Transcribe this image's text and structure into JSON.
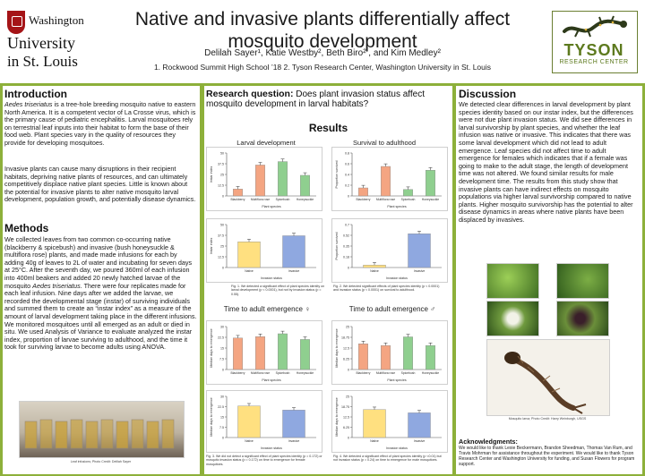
{
  "header": {
    "wu_logo_lines": [
      "Washington",
      "University",
      "in St. Louis"
    ],
    "title_line1": "Native and invasive plants differentially affect",
    "title_line2": "mosquito development",
    "authors": "Delilah Sayer¹, Katie Westby²,  Beth Biro² , and Kim Medley²",
    "affiliations": "1. Rockwood Summit High School ’18  2. Tyson Research Center, Washington University in St. Louis",
    "tyson_logo_name": "TYSON",
    "tyson_logo_sub": "RESEARCH CENTER"
  },
  "introduction": {
    "heading": "Introduction",
    "species": "Aedes triseriatus",
    "para1": " is a tree-hole breeding mosquito native to eastern North America. It is a competent vector of La Crosse virus, which is the primary cause of pediatric encephalitis. Larval mosquitoes rely on terrestrial leaf inputs into their habitat to form the base of their food web. Plant species vary in the quality of resources they provide for developing mosquitoes.",
    "para2": "Invasive plants can cause many disruptions in their recipient habitats, depriving native plants of resources, and can ultimately competitively displace native plant species. Little is known about the potential for invasive plants to alter native mosquito larval development, population growth, and potentially disease dynamics."
  },
  "methods": {
    "heading": "Methods",
    "text_a": "We collected leaves from two common co-occurring native (blackberry & spicebush)  and invasive (bush honeysuckle & multiflora rose) plants, and made made infusions for each by adding 40g of leaves to 2L of water and incubating for seven days at 25°C. After the seventh day, we poured 360ml of each infusion into 400ml beakers and added 20 newly hatched larvae of the mosquito ",
    "text_species": "Aedes triseriatus",
    "text_b": ". There were four replicates made for each leaf infusion. Nine days after we added the larvae, we recorded the developmental stage (instar) of surviving individuals and summed them to create an “instar index” as a measure of the amount of larval development taking place in the different infusions. We monitored mosquitoes until all emerged as an adult or died in situ. We used Analysis of Variance to evaluate analyzed the instar index, proportion of larvae surviving to adulthood, and the time it took for surviving larvae to become adults using ANOVA.",
    "photo_caption": "Leaf infusions; Photo Credit: Delilah Sayer"
  },
  "research_question": {
    "label": "Research question:",
    "text": " Does plant invasion status affect mosquito development in larval habitats?"
  },
  "results": {
    "heading": "Results",
    "larval_title": "Larval development",
    "survival_title": "Survival to adulthood",
    "female_title": "Time to adult emergence ♀",
    "male_title": "Time to adult emergence ♂",
    "cap_fig1": "Fig. 1. We detected a significant effect of plant species identity on larval development (p < 0.0001), but not by invasion status (p = 0.55).",
    "cap_fig2": "Fig. 2. We detected significant effects of plant species identity (p < 0.0001) and invasion status (p < 0.0001) on survival to adulthood.",
    "cap_fig3": "Fig. 3. We did not detect a significant effect of plant species identity (p = 0.172) or mosquito invasion status (p = 0.172) on time to emergence for female mosquitoes.",
    "cap_fig4": "Fig. 4. We detected a significant effect of plant species identity (p <0.01) but not invasion status (p = 0.24) on time to emergence for male mosquitoes."
  },
  "chart_data": [
    {
      "type": "bar",
      "title": "Larval development",
      "categories": [
        "Blackberry",
        "Multiflora rose",
        "Spicebush",
        "Honeysuckle"
      ],
      "values": [
        8,
        36,
        40,
        24
      ],
      "colors": [
        "#f4a582",
        "#f4a582",
        "#8fcf8f",
        "#8fcf8f"
      ],
      "ylim": [
        0,
        50
      ],
      "ylabel": "Instar index",
      "xlabel": "Plant species"
    },
    {
      "type": "bar",
      "title": "Survival to adulthood",
      "categories": [
        "Blackberry",
        "Multiflora rose",
        "Spicebush",
        "Honeysuckle"
      ],
      "values": [
        0.15,
        0.55,
        0.12,
        0.48
      ],
      "colors": [
        "#f4a582",
        "#f4a582",
        "#8fcf8f",
        "#8fcf8f"
      ],
      "ylim": [
        0,
        0.8
      ],
      "ylabel": "Proportion survived",
      "xlabel": "Plant species"
    },
    {
      "type": "bar",
      "categories": [
        "Native",
        "Invasive"
      ],
      "values": [
        30,
        37
      ],
      "colors": [
        "#ffe080",
        "#8fa8e0"
      ],
      "ylim": [
        0,
        50
      ],
      "ylabel": "Instar index",
      "xlabel": "Invasion status"
    },
    {
      "type": "bar",
      "categories": [
        "Native",
        "Invasive"
      ],
      "values": [
        0.04,
        0.55
      ],
      "colors": [
        "#ffe080",
        "#8fa8e0"
      ],
      "ylim": [
        0,
        0.7
      ],
      "ylabel": "Proportion survived",
      "xlabel": "Invasion status"
    },
    {
      "type": "bar",
      "title": "Time to adult emergence ♀",
      "categories": [
        "Blackberry",
        "Multiflora rose",
        "Spicebush",
        "Honeysuckle"
      ],
      "values": [
        22,
        23,
        25,
        21
      ],
      "colors": [
        "#f4a582",
        "#f4a582",
        "#8fcf8f",
        "#8fcf8f"
      ],
      "ylim": [
        0,
        30
      ],
      "ylabel": "Median days to emergence",
      "xlabel": "Plant species"
    },
    {
      "type": "bar",
      "title": "Time to adult emergence ♂",
      "categories": [
        "Blackberry",
        "Multiflora rose",
        "Spicebush",
        "Honeysuckle"
      ],
      "values": [
        15,
        14,
        19,
        14
      ],
      "colors": [
        "#f4a582",
        "#f4a582",
        "#8fcf8f",
        "#8fcf8f"
      ],
      "ylim": [
        0,
        25
      ],
      "ylabel": "Median days to emergence",
      "xlabel": "Plant species"
    },
    {
      "type": "bar",
      "categories": [
        "Native",
        "Invasive"
      ],
      "values": [
        23,
        20
      ],
      "colors": [
        "#ffe080",
        "#8fa8e0"
      ],
      "ylim": [
        0,
        30
      ],
      "ylabel": "Median days to emergence",
      "xlabel": "Invasion status"
    },
    {
      "type": "bar",
      "categories": [
        "Native",
        "Invasive"
      ],
      "values": [
        17,
        15
      ],
      "colors": [
        "#ffe080",
        "#8fa8e0"
      ],
      "ylim": [
        0,
        25
      ],
      "ylabel": "Median days to emergence",
      "xlabel": "Invasion status"
    }
  ],
  "discussion": {
    "heading": "Discussion",
    "text": "We detected clear differences in larval development by plant species identity based on our instar index, but the differences were not due plant invasion status. We did see differences in larval survivorship by plant species, and whether the leaf infusion was native or invasive. This indicates that there was some larval development which did not lead to adult emergence. Leaf species did not affect time to adult emergence for females which indicates that if a female was going to make to the adult stage, the length of development time was not altered. We found similar results for male development time. The results from this study show that invasive plants can have indirect effects on mosquito populations via higher larval survivorship compared to native plants. Higher mosquito survivorship has the potential to alter disease dynamics in areas where native plants have been displaced by invasives.",
    "photo_caption": "Mosquito larva; Photo Credit: Harry Weinburgh, USGS",
    "ack_heading": "Acknowledgments:",
    "ack_text": "We would like to thank Lexie Beckermann, Brandon Sheedman, Thomas Van Rum, and Travis Mohrman for assistance throughout the experiment. We would like to thank Tyson Research Center and Washington University for funding, and Susan Flowers for program support."
  }
}
